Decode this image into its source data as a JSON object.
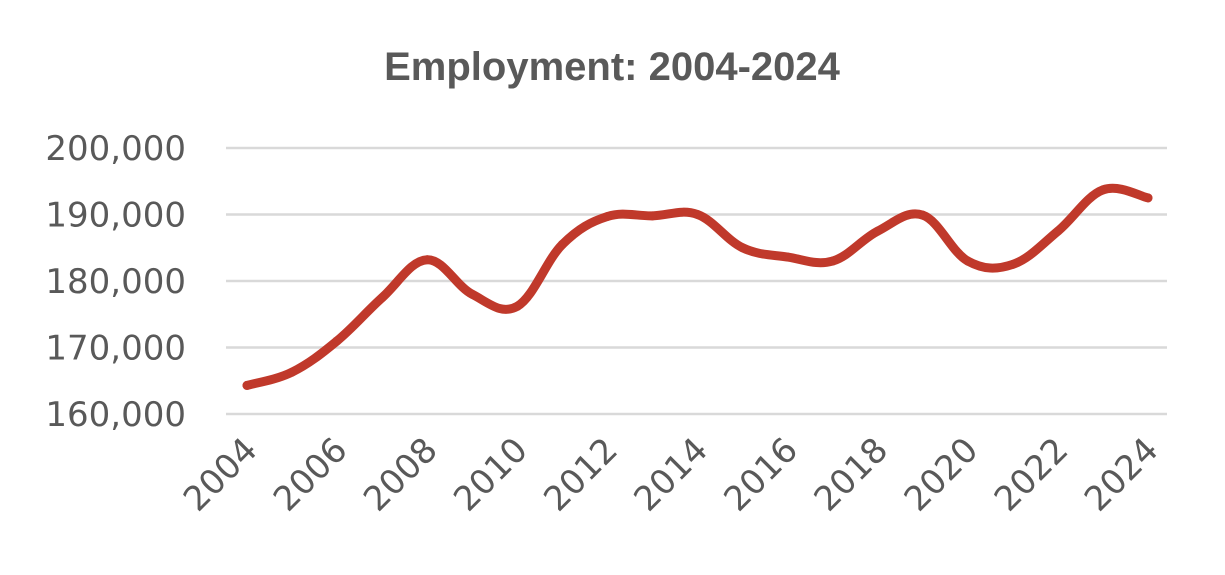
{
  "chart_data": {
    "type": "line",
    "title": "Employment: 2004-2024",
    "xlabel": "",
    "ylabel": "",
    "x": [
      2004,
      2005,
      2006,
      2007,
      2008,
      2009,
      2010,
      2011,
      2012,
      2013,
      2014,
      2015,
      2016,
      2017,
      2018,
      2019,
      2020,
      2021,
      2022,
      2023,
      2024
    ],
    "x_tick_labels": [
      "2004",
      "2006",
      "2008",
      "2010",
      "2012",
      "2014",
      "2016",
      "2018",
      "2020",
      "2022",
      "2024"
    ],
    "y_tick_labels": [
      "200,000",
      "190,000",
      "180,000",
      "170,000",
      "160,000"
    ],
    "series": [
      {
        "color": "#c0392b",
        "values": [
          164300,
          166300,
          171000,
          177500,
          183200,
          178000,
          176200,
          185500,
          189700,
          189800,
          190000,
          185000,
          183600,
          183000,
          187500,
          189900,
          183000,
          182500,
          187500,
          193700,
          192500
        ]
      }
    ],
    "ylim": [
      160000,
      200000
    ],
    "yticks": [
      200000,
      190000,
      180000,
      170000,
      160000
    ],
    "grid": true,
    "legend": "none",
    "colors": {
      "line": "#c0392b",
      "grid": "#d9d9d9",
      "text": "#595959"
    }
  }
}
